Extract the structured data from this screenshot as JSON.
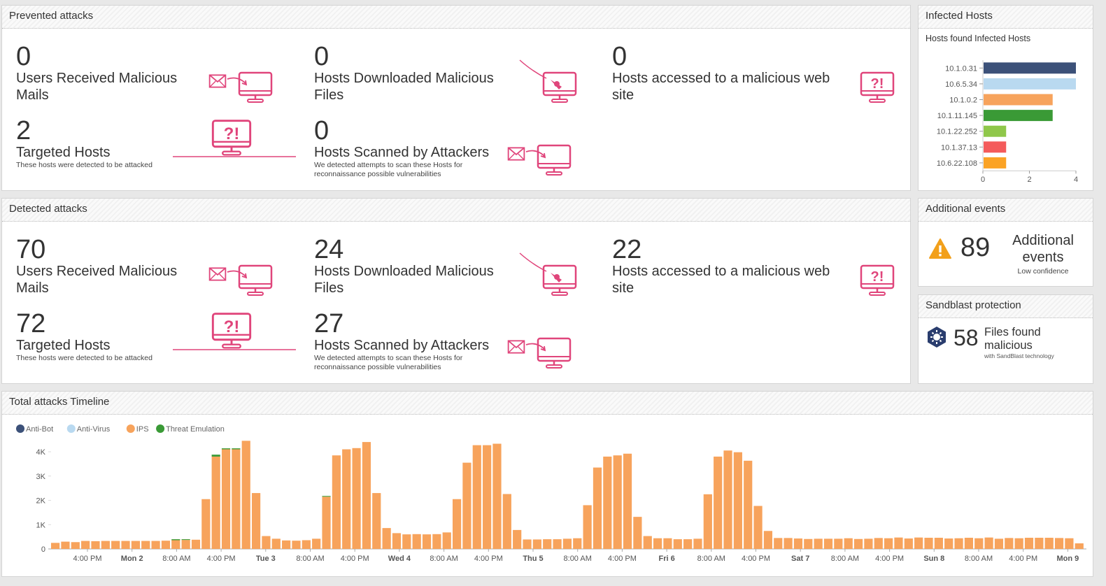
{
  "prevented": {
    "title": "Prevented attacks",
    "users_mails": {
      "num": "0",
      "label": "Users Received Malicious Mails"
    },
    "downloaded": {
      "num": "0",
      "label": "Hosts Downloaded Malicious Files"
    },
    "web": {
      "num": "0",
      "label": "Hosts accessed to a malicious web site"
    },
    "targeted": {
      "num": "2",
      "label": "Targeted Hosts",
      "sub": "These hosts were detected to be attacked"
    },
    "scanned": {
      "num": "0",
      "label": "Hosts Scanned by Attackers",
      "sub": "We detected attempts to scan these Hosts for reconnaissance possible vulnerabilities"
    }
  },
  "detected": {
    "title": "Detected attacks",
    "users_mails": {
      "num": "70",
      "label": "Users Received Malicious Mails"
    },
    "downloaded": {
      "num": "24",
      "label": "Hosts Downloaded Malicious Files"
    },
    "web": {
      "num": "22",
      "label": "Hosts accessed to a malicious web site"
    },
    "targeted": {
      "num": "72",
      "label": "Targeted Hosts",
      "sub": "These hosts were detected to be attacked"
    },
    "scanned": {
      "num": "27",
      "label": "Hosts Scanned by Attackers",
      "sub": "We detected attempts to scan these Hosts for reconnaissance possible vulnerabilities"
    }
  },
  "infected": {
    "title": "Infected Hosts",
    "subtitle": "Hosts found Infected Hosts",
    "chart_data": {
      "type": "bar",
      "orientation": "horizontal",
      "categories": [
        "10.1.0.31",
        "10.6.5.34",
        "10.1.0.2",
        "10.1.11.145",
        "10.1.22.252",
        "10.1.37.13",
        "10.6.22.108"
      ],
      "values": [
        4,
        4,
        3,
        3,
        1,
        1,
        1
      ],
      "colors": [
        "#3c5179",
        "#b9d9f0",
        "#f7a35c",
        "#3a9a36",
        "#8fc74a",
        "#f45b5b",
        "#fba325"
      ],
      "xlim": [
        0,
        4
      ],
      "xticks": [
        "0",
        "2",
        "4"
      ]
    }
  },
  "additional": {
    "title": "Additional events",
    "num": "89",
    "label": "Additional events",
    "sub": "Low confidence"
  },
  "sandblast": {
    "title": "Sandblast protection",
    "num": "58",
    "label": "Files found malicious",
    "sub": "with SandBlast technology"
  },
  "timeline": {
    "title": "Total attacks Timeline",
    "chart_data": {
      "type": "bar",
      "stacked": true,
      "legend": [
        {
          "name": "Anti-Bot",
          "color": "#3c5179"
        },
        {
          "name": "Anti-Virus",
          "color": "#b9d9f0"
        },
        {
          "name": "IPS",
          "color": "#f7a35c"
        },
        {
          "name": "Threat Emulation",
          "color": "#3a9a36"
        }
      ],
      "ylim": [
        0,
        4000
      ],
      "yticks": [
        "0",
        "1K",
        "2K",
        "3K",
        "4K"
      ],
      "xticks": [
        {
          "label": "4:00 PM",
          "bold": false
        },
        {
          "label": "Mon 2",
          "bold": true
        },
        {
          "label": "8:00 AM",
          "bold": false
        },
        {
          "label": "4:00 PM",
          "bold": false
        },
        {
          "label": "Tue 3",
          "bold": true
        },
        {
          "label": "8:00 AM",
          "bold": false
        },
        {
          "label": "4:00 PM",
          "bold": false
        },
        {
          "label": "Wed 4",
          "bold": true
        },
        {
          "label": "8:00 AM",
          "bold": false
        },
        {
          "label": "4:00 PM",
          "bold": false
        },
        {
          "label": "Thu 5",
          "bold": true
        },
        {
          "label": "8:00 AM",
          "bold": false
        },
        {
          "label": "4:00 PM",
          "bold": false
        },
        {
          "label": "Fri 6",
          "bold": true
        },
        {
          "label": "8:00 AM",
          "bold": false
        },
        {
          "label": "4:00 PM",
          "bold": false
        },
        {
          "label": "Sat 7",
          "bold": true
        },
        {
          "label": "8:00 AM",
          "bold": false
        },
        {
          "label": "4:00 PM",
          "bold": false
        },
        {
          "label": "Sun 8",
          "bold": true
        },
        {
          "label": "8:00 AM",
          "bold": false
        },
        {
          "label": "4:00 PM",
          "bold": false
        },
        {
          "label": "Mon 9",
          "bold": true
        }
      ],
      "ips": [
        250,
        300,
        280,
        330,
        320,
        330,
        330,
        330,
        330,
        330,
        330,
        340,
        360,
        370,
        380,
        2050,
        3800,
        4100,
        4100,
        4450,
        2300,
        530,
        420,
        350,
        340,
        360,
        420,
        2150,
        3850,
        4100,
        4150,
        4400,
        2300,
        860,
        650,
        600,
        610,
        600,
        610,
        680,
        2050,
        3550,
        4270,
        4270,
        4330,
        2260,
        780,
        390,
        390,
        400,
        400,
        420,
        440,
        1800,
        3350,
        3800,
        3850,
        3920,
        1320,
        530,
        440,
        440,
        400,
        400,
        420,
        2250,
        3800,
        4050,
        3980,
        3630,
        1770,
        740,
        450,
        450,
        430,
        410,
        420,
        420,
        420,
        440,
        410,
        420,
        450,
        440,
        470,
        430,
        470,
        460,
        460,
        430,
        440,
        460,
        440,
        470,
        420,
        450,
        440,
        460,
        460,
        460,
        450,
        440,
        230
      ],
      "threat_emulation": [
        0,
        0,
        0,
        0,
        0,
        0,
        0,
        0,
        0,
        0,
        0,
        0,
        40,
        30,
        0,
        0,
        80,
        40,
        40,
        0,
        0,
        0,
        0,
        0,
        0,
        0,
        0,
        30,
        0,
        0,
        0,
        0,
        0,
        0,
        0,
        0,
        0,
        0,
        0,
        0,
        0,
        0,
        0,
        0,
        0,
        0,
        0,
        0,
        0,
        0,
        0,
        0,
        0,
        0,
        0,
        0,
        0,
        0,
        0,
        0,
        0,
        0,
        0,
        0,
        0,
        0,
        0,
        0,
        0,
        0,
        0,
        0,
        0,
        0,
        0,
        0,
        0,
        0,
        0,
        0,
        0,
        0,
        0,
        0,
        0,
        0,
        0,
        0,
        0,
        0,
        0,
        0,
        0,
        0,
        0,
        0,
        0,
        0,
        0,
        0,
        0
      ]
    }
  }
}
